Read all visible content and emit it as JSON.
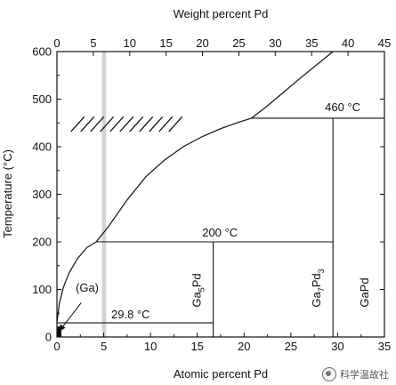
{
  "chart_data": {
    "type": "phase-diagram",
    "title": "",
    "xlabel": "Atomic percent Pd",
    "x2label": "Weight percent Pd",
    "ylabel": "Temperature (°C)",
    "xlim": [
      0,
      35
    ],
    "ylim": [
      0,
      600
    ],
    "x2lim": [
      0,
      45
    ],
    "xticks": [
      0,
      5,
      10,
      15,
      20,
      25,
      30,
      35
    ],
    "x2ticks": [
      0,
      5,
      10,
      15,
      20,
      25,
      30,
      35,
      40,
      45
    ],
    "yticks": [
      0,
      100,
      200,
      300,
      400,
      500,
      600
    ],
    "liquidus": [
      [
        0,
        30
      ],
      [
        0.25,
        70
      ],
      [
        0.7,
        105
      ],
      [
        1.3,
        135
      ],
      [
        2.2,
        165
      ],
      [
        3.2,
        188
      ],
      [
        4.2,
        200
      ],
      [
        5.5,
        232
      ],
      [
        7.5,
        288
      ],
      [
        9.5,
        337
      ],
      [
        11.5,
        372
      ],
      [
        13.5,
        400
      ],
      [
        15.5,
        421
      ],
      [
        17.5,
        438
      ],
      [
        19.5,
        452
      ],
      [
        20.8,
        460
      ],
      [
        22.5,
        486
      ],
      [
        26,
        544
      ],
      [
        29.5,
        600
      ]
    ],
    "isotherms": [
      {
        "label": "460 °C",
        "y": 460,
        "x_start": 20.8,
        "x_end": 35
      },
      {
        "label": "200 °C",
        "y": 200,
        "x_start": 4.2,
        "x_end": 29.5
      },
      {
        "label": "29.8 °C",
        "y": 29.8,
        "x_start": 0,
        "x_end": 16.7
      }
    ],
    "phase_lines": [
      {
        "label": "Ga5Pd",
        "label_main": "Ga",
        "label_sub": "5",
        "label_tail": "Pd",
        "x": 16.7,
        "y_top": 200
      },
      {
        "label": "Ga7Pd3",
        "label_main": "Ga",
        "label_sub": "7",
        "label_tail": "Pd",
        "label_sub2": "3",
        "x": 29.5,
        "y_top": 460
      },
      {
        "label": "GaPd",
        "label_main": "GaPd",
        "x": 35,
        "y_top": 460
      }
    ],
    "annotations": [
      {
        "text": "(Ga)",
        "x": 2.0,
        "y": 95
      }
    ],
    "highlight_band": {
      "x": 5.0,
      "width": 0.45
    },
    "hatched_region": {
      "x_start": 1.5,
      "x_end": 14,
      "y_start": 432,
      "y_end": 463
    }
  },
  "watermark": {
    "text": "科学温故社"
  }
}
